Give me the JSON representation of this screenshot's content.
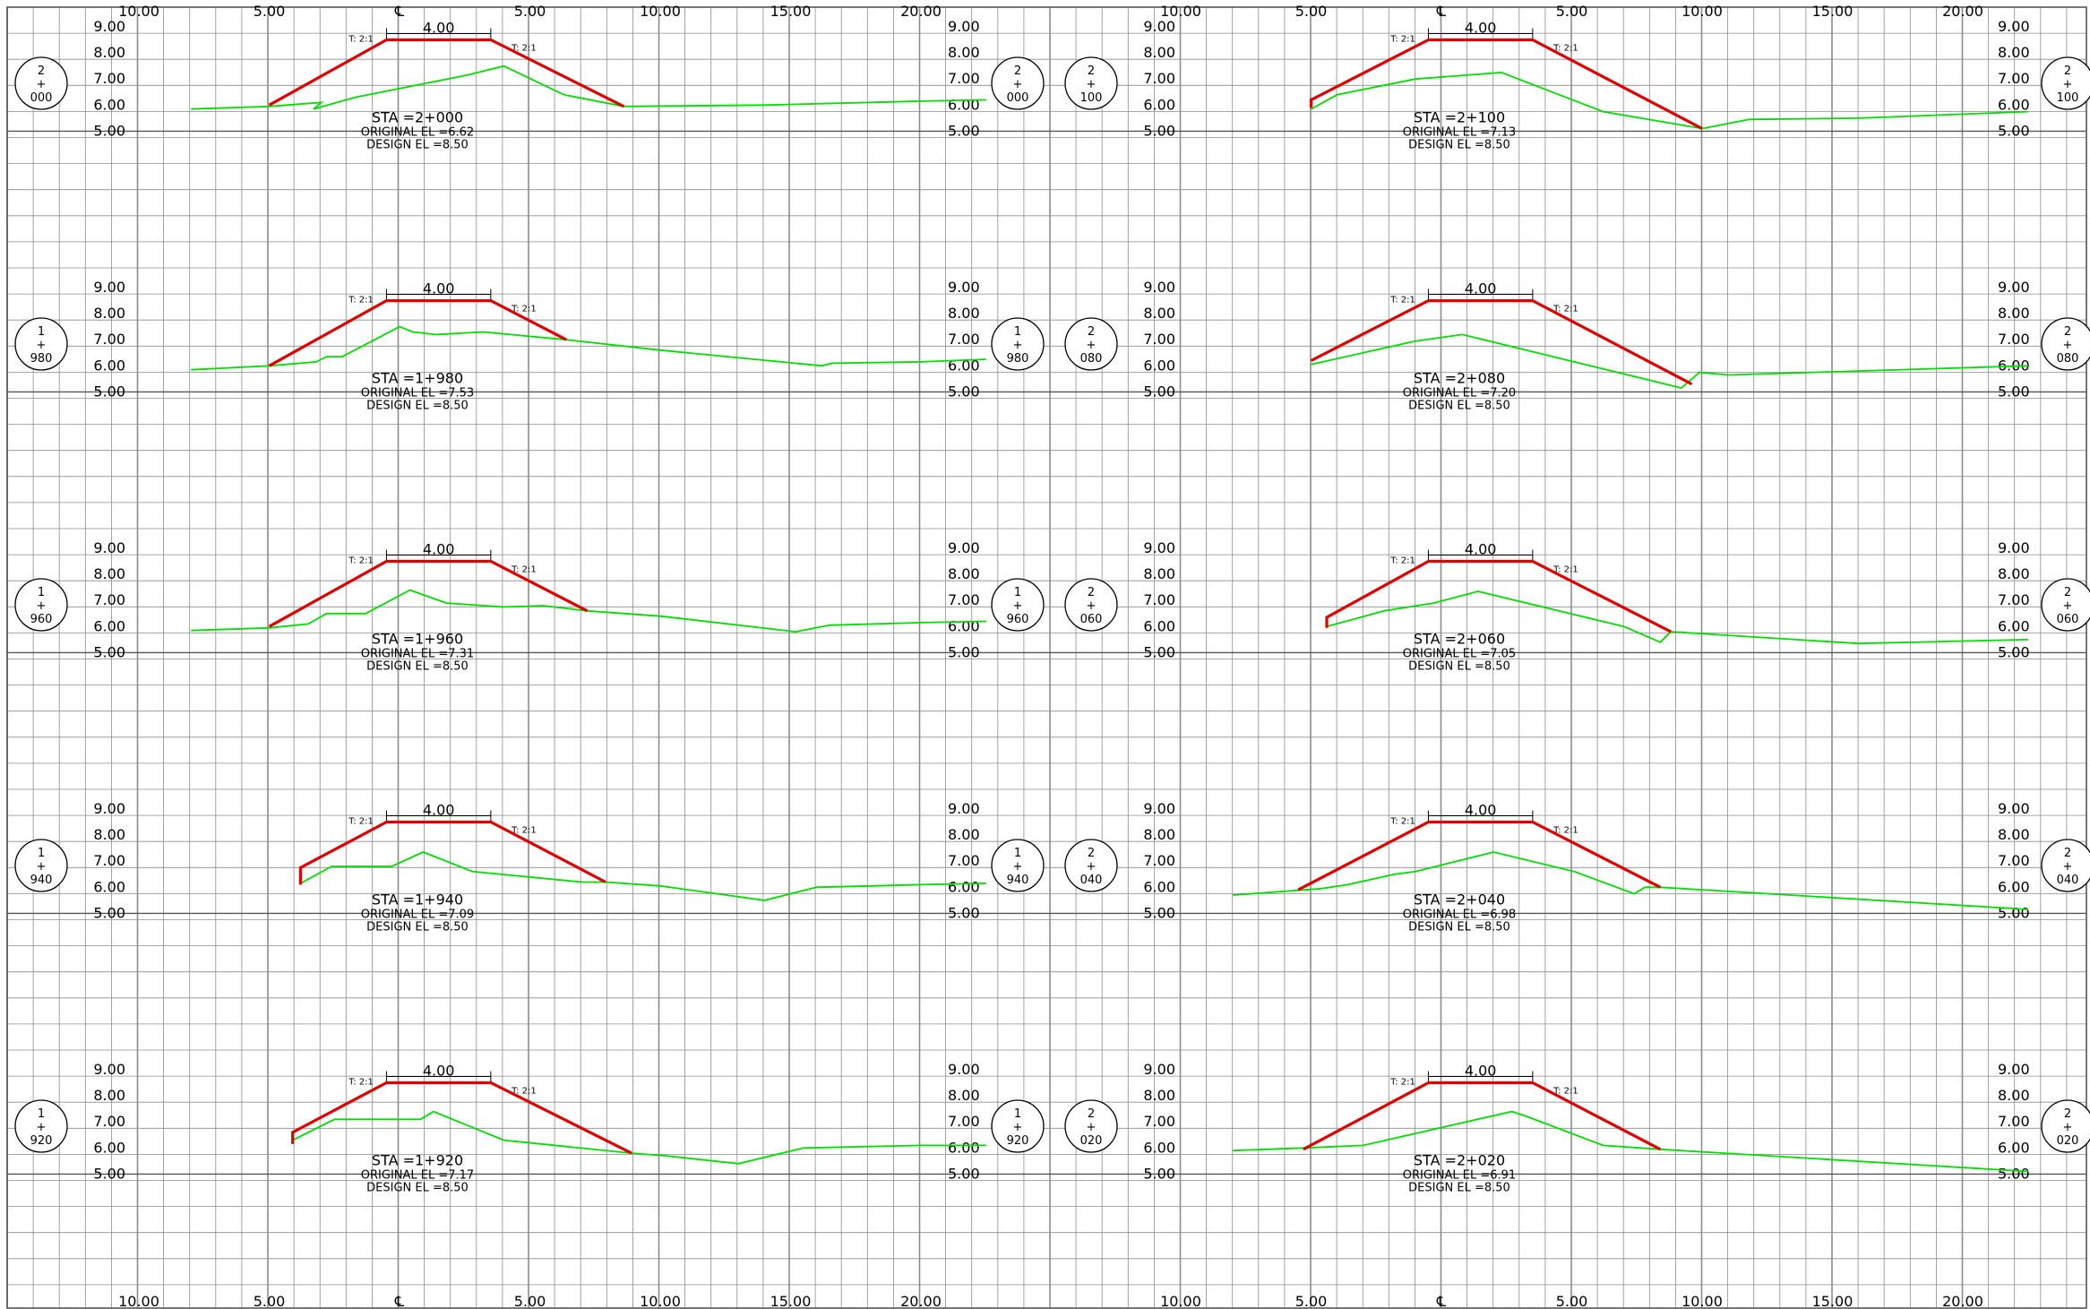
{
  "colors": {
    "background": "#ffffff",
    "grid": "#8c8c8c",
    "text": "#000000",
    "design": "#e00000",
    "ground": "#00dd00"
  },
  "axis": {
    "x_labels": [
      "10.00",
      "5.00",
      "℄",
      "5.00",
      "10.00",
      "15.00",
      "20.00"
    ],
    "y_labels": [
      "9.00",
      "8.00",
      "7.00",
      "6.00",
      "5.00"
    ]
  },
  "crown_width_label": "4.00",
  "slope_left": "T: 2:1",
  "slope_right": "T: 2:1",
  "sections": [
    {
      "sta": "2+000",
      "bubble": [
        "2",
        "+",
        "000"
      ],
      "original_el": "6.62",
      "design_el": "8.50",
      "col": 0,
      "row": 0,
      "sta_text": "STA  =2+000",
      "orig_text": "ORIGINAL  EL  =6.62",
      "design_text": "DESIGN  EL  =8.50",
      "design_line": [
        [
          -5,
          6.0
        ],
        [
          -0.5,
          8.5
        ],
        [
          3.5,
          8.5
        ],
        [
          8.6,
          5.95
        ]
      ],
      "ground": [
        [
          -8,
          5.85
        ],
        [
          -5,
          5.95
        ],
        [
          -3,
          6.1
        ],
        [
          -3.3,
          5.85
        ],
        [
          -1.7,
          6.3
        ],
        [
          2.6,
          7.15
        ],
        [
          4.0,
          7.5
        ],
        [
          6.3,
          6.4
        ],
        [
          8.6,
          5.95
        ],
        [
          14,
          6.0
        ],
        [
          20,
          6.15
        ],
        [
          22.5,
          6.2
        ]
      ]
    },
    {
      "sta": "1+980",
      "bubble": [
        "1",
        "+",
        "980"
      ],
      "original_el": "7.53",
      "design_el": "8.50",
      "col": 0,
      "row": 1,
      "sta_text": "STA  =1+980",
      "orig_text": "ORIGINAL  EL  =7.53",
      "design_text": "DESIGN  EL  =8.50",
      "design_line": [
        [
          -5,
          6.0
        ],
        [
          -0.5,
          8.5
        ],
        [
          3.5,
          8.5
        ],
        [
          6.4,
          7.0
        ]
      ],
      "ground": [
        [
          -8,
          5.85
        ],
        [
          -5,
          6.0
        ],
        [
          -3.2,
          6.15
        ],
        [
          -2.8,
          6.35
        ],
        [
          -2.2,
          6.35
        ],
        [
          0,
          7.5
        ],
        [
          0.5,
          7.3
        ],
        [
          1.4,
          7.2
        ],
        [
          3.2,
          7.3
        ],
        [
          6.4,
          7.0
        ],
        [
          10,
          6.6
        ],
        [
          16.2,
          6.0
        ],
        [
          16.6,
          6.1
        ],
        [
          20,
          6.15
        ],
        [
          22.5,
          6.25
        ]
      ]
    },
    {
      "sta": "1+960",
      "bubble": [
        "1",
        "+",
        "960"
      ],
      "original_el": "7.31",
      "design_el": "8.50",
      "col": 0,
      "row": 2,
      "sta_text": "STA  =1+960",
      "orig_text": "ORIGINAL  EL  =7.31",
      "design_text": "DESIGN  EL  =8.50",
      "design_line": [
        [
          -5,
          6.0
        ],
        [
          -0.5,
          8.5
        ],
        [
          3.5,
          8.5
        ],
        [
          7.2,
          6.6
        ]
      ],
      "ground": [
        [
          -8,
          5.85
        ],
        [
          -5,
          5.95
        ],
        [
          -3.5,
          6.1
        ],
        [
          -2.8,
          6.5
        ],
        [
          -1.3,
          6.5
        ],
        [
          0.4,
          7.4
        ],
        [
          1.8,
          6.9
        ],
        [
          4,
          6.75
        ],
        [
          5.5,
          6.8
        ],
        [
          7.2,
          6.6
        ],
        [
          10,
          6.4
        ],
        [
          15.2,
          5.8
        ],
        [
          16.5,
          6.05
        ],
        [
          20,
          6.15
        ],
        [
          22.5,
          6.2
        ]
      ]
    },
    {
      "sta": "1+940",
      "bubble": [
        "1",
        "+",
        "940"
      ],
      "original_el": "7.09",
      "design_el": "8.50",
      "col": 0,
      "row": 3,
      "sta_text": "STA  =1+940",
      "orig_text": "ORIGINAL  EL  =7.09",
      "design_text": "DESIGN  EL  =8.50",
      "design_line": [
        [
          -3.8,
          6.1
        ],
        [
          -3.8,
          6.75
        ],
        [
          -0.5,
          8.5
        ],
        [
          3.5,
          8.5
        ],
        [
          7.9,
          6.2
        ]
      ],
      "ground": [
        [
          -3.8,
          6.15
        ],
        [
          -2.6,
          6.8
        ],
        [
          -0.3,
          6.8
        ],
        [
          0.9,
          7.35
        ],
        [
          2.8,
          6.6
        ],
        [
          7,
          6.2
        ],
        [
          7.9,
          6.2
        ],
        [
          10,
          6.05
        ],
        [
          14,
          5.5
        ],
        [
          16,
          6.0
        ],
        [
          20,
          6.1
        ],
        [
          22.5,
          6.15
        ]
      ]
    },
    {
      "sta": "1+920",
      "bubble": [
        "1",
        "+",
        "920"
      ],
      "original_el": "7.17",
      "design_el": "8.50",
      "col": 0,
      "row": 4,
      "sta_text": "STA  =1+920",
      "orig_text": "ORIGINAL  EL  =7.17",
      "design_text": "DESIGN  EL  =8.50",
      "design_line": [
        [
          -4.1,
          6.15
        ],
        [
          -4.1,
          6.6
        ],
        [
          -0.5,
          8.5
        ],
        [
          3.5,
          8.5
        ],
        [
          8.9,
          5.8
        ]
      ],
      "ground": [
        [
          -4.1,
          6.3
        ],
        [
          -2.5,
          7.1
        ],
        [
          0.8,
          7.1
        ],
        [
          1.3,
          7.4
        ],
        [
          4,
          6.3
        ],
        [
          8.9,
          5.8
        ],
        [
          10.2,
          5.7
        ],
        [
          13,
          5.4
        ],
        [
          15.5,
          6.0
        ],
        [
          20,
          6.1
        ],
        [
          22.5,
          6.1
        ]
      ]
    },
    {
      "sta": "2+100",
      "bubble": [
        "2",
        "+",
        "100"
      ],
      "original_el": "7.13",
      "design_el": "8.50",
      "col": 1,
      "row": 0,
      "sta_text": "STA  =2+100",
      "orig_text": "ORIGINAL  EL  =7.13",
      "design_text": "DESIGN  EL  =8.50",
      "design_line": [
        [
          -5,
          5.9
        ],
        [
          -5,
          6.2
        ],
        [
          -0.5,
          8.5
        ],
        [
          3.5,
          8.5
        ],
        [
          10,
          5.1
        ]
      ],
      "ground": [
        [
          -5,
          5.85
        ],
        [
          -4,
          6.4
        ],
        [
          -1,
          7.0
        ],
        [
          2.3,
          7.25
        ],
        [
          6.2,
          5.75
        ],
        [
          10,
          5.1
        ],
        [
          11.8,
          5.45
        ],
        [
          16,
          5.5
        ],
        [
          22.5,
          5.75
        ]
      ]
    },
    {
      "sta": "2+080",
      "bubble": [
        "2",
        "+",
        "080"
      ],
      "original_el": "7.20",
      "design_el": "8.50",
      "col": 1,
      "row": 1,
      "sta_text": "STA  =2+080",
      "orig_text": "ORIGINAL  EL  =7.20",
      "design_text": "DESIGN  EL  =8.50",
      "design_line": [
        [
          -5,
          6.2
        ],
        [
          -0.5,
          8.5
        ],
        [
          3.5,
          8.5
        ],
        [
          9.6,
          5.3
        ]
      ],
      "ground": [
        [
          -5,
          6.05
        ],
        [
          -1,
          6.95
        ],
        [
          0.8,
          7.2
        ],
        [
          9.2,
          5.15
        ],
        [
          9.9,
          5.75
        ],
        [
          11,
          5.65
        ],
        [
          16,
          5.8
        ],
        [
          22.5,
          6.0
        ]
      ]
    },
    {
      "sta": "2+060",
      "bubble": [
        "2",
        "+",
        "060"
      ],
      "original_el": "7.05",
      "design_el": "8.50",
      "col": 1,
      "row": 2,
      "sta_text": "STA  =2+060",
      "orig_text": "ORIGINAL  EL  =7.05",
      "design_text": "DESIGN  EL  =8.50",
      "design_line": [
        [
          -4.4,
          5.95
        ],
        [
          -4.4,
          6.35
        ],
        [
          -0.5,
          8.5
        ],
        [
          3.5,
          8.5
        ],
        [
          8.8,
          5.8
        ]
      ],
      "ground": [
        [
          -4.4,
          6.0
        ],
        [
          -2.2,
          6.6
        ],
        [
          -0.3,
          6.9
        ],
        [
          1.4,
          7.35
        ],
        [
          7,
          6.0
        ],
        [
          8.4,
          5.4
        ],
        [
          8.8,
          5.8
        ],
        [
          16,
          5.35
        ],
        [
          22.5,
          5.5
        ]
      ]
    },
    {
      "sta": "2+040",
      "bubble": [
        "2",
        "+",
        "040"
      ],
      "original_el": "6.98",
      "design_el": "8.50",
      "col": 1,
      "row": 3,
      "sta_text": "STA  =2+040",
      "orig_text": "ORIGINAL  EL  =6.98",
      "design_text": "DESIGN  EL  =8.50",
      "design_line": [
        [
          -5.5,
          5.9
        ],
        [
          -0.5,
          8.5
        ],
        [
          3.5,
          8.5
        ],
        [
          8.4,
          6.0
        ]
      ],
      "ground": [
        [
          -8,
          5.7
        ],
        [
          -4.6,
          5.95
        ],
        [
          -3.6,
          6.1
        ],
        [
          -1.8,
          6.5
        ],
        [
          -1,
          6.6
        ],
        [
          2,
          7.35
        ],
        [
          5.1,
          6.6
        ],
        [
          7.4,
          5.75
        ],
        [
          7.8,
          6.0
        ],
        [
          8.4,
          6.0
        ],
        [
          22.5,
          5.15
        ]
      ]
    },
    {
      "sta": "2+020",
      "bubble": [
        "2",
        "+",
        "020"
      ],
      "original_el": "6.91",
      "design_el": "8.50",
      "col": 1,
      "row": 4,
      "sta_text": "STA  =2+020",
      "orig_text": "ORIGINAL  EL  =6.91",
      "design_text": "DESIGN  EL  =8.50",
      "design_line": [
        [
          -5.3,
          5.95
        ],
        [
          -0.5,
          8.5
        ],
        [
          3.5,
          8.5
        ],
        [
          8.4,
          5.95
        ]
      ],
      "ground": [
        [
          -8,
          5.9
        ],
        [
          -5.3,
          6.0
        ],
        [
          -3,
          6.1
        ],
        [
          2.7,
          7.4
        ],
        [
          3.3,
          7.2
        ],
        [
          6.2,
          6.1
        ],
        [
          8.4,
          5.95
        ],
        [
          22.5,
          5.1
        ]
      ]
    }
  ]
}
